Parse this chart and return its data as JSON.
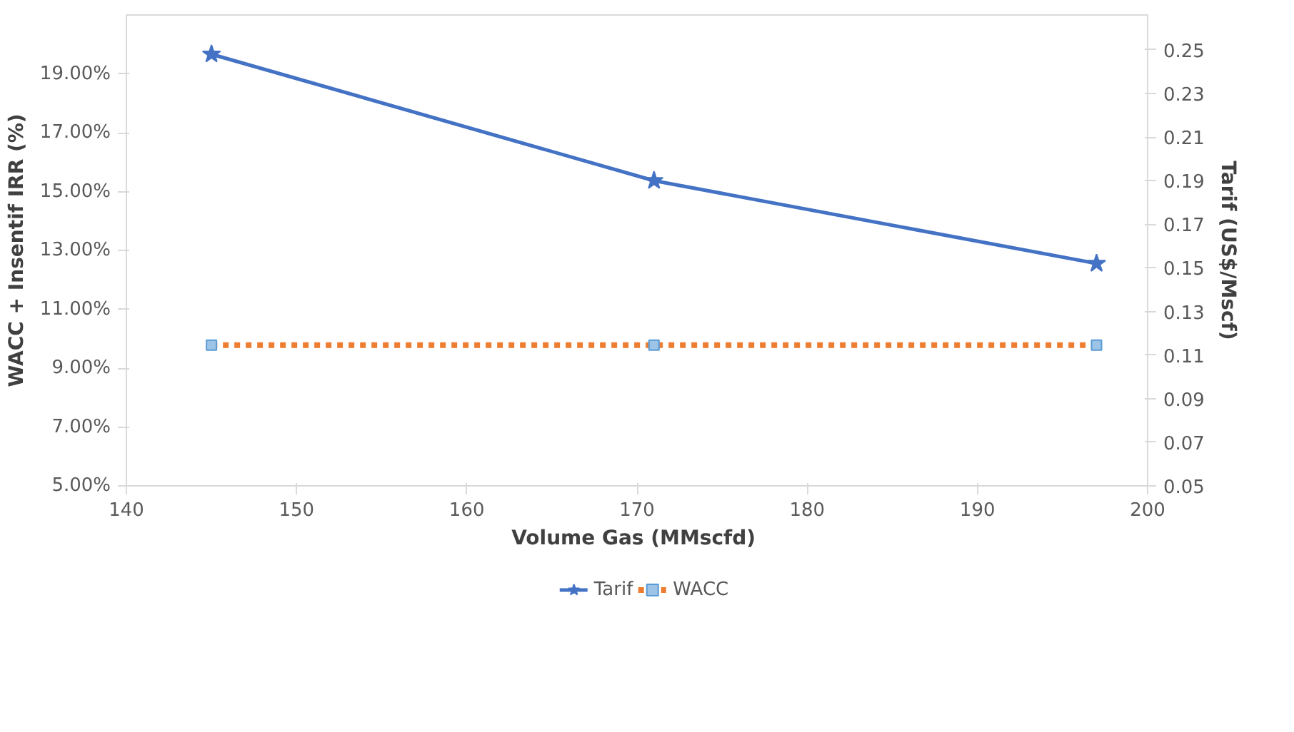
{
  "chart_data": {
    "type": "line",
    "xlabel": "Volume Gas  (MMscfd)",
    "ylabel": "WACC + Insentif IRR (%)",
    "y2label": "Tarif (US$/Mscf)",
    "xlim": [
      140,
      200
    ],
    "xticks": [
      140,
      150,
      160,
      170,
      180,
      190,
      200
    ],
    "ylim": [
      5,
      21
    ],
    "yticks": [
      {
        "value": 5,
        "label": "5.00%"
      },
      {
        "value": 7,
        "label": "7.00%"
      },
      {
        "value": 9,
        "label": "9.00%"
      },
      {
        "value": 11,
        "label": "11.00%"
      },
      {
        "value": 13,
        "label": "13.00%"
      },
      {
        "value": 15,
        "label": "15.00%"
      },
      {
        "value": 17,
        "label": "17.00%"
      },
      {
        "value": 19,
        "label": "19.00%"
      }
    ],
    "y2lim": [
      0.05,
      0.266
    ],
    "y2ticks": [
      0.05,
      0.07,
      0.09,
      0.11,
      0.13,
      0.15,
      0.17,
      0.19,
      0.21,
      0.23,
      0.25
    ],
    "x": [
      145,
      171,
      197
    ],
    "series": [
      {
        "name": "Tarif",
        "color": "#4472c4",
        "values": [
          0.248,
          0.19,
          0.152
        ],
        "axis": "y2",
        "marker": "star",
        "line_style": "solid"
      },
      {
        "name": "WACC",
        "color": "#ed7d31",
        "values": [
          9.78,
          9.78,
          9.78
        ],
        "marker": "square",
        "line_style": "dotted"
      }
    ],
    "grid": false,
    "legend": "bottom"
  }
}
